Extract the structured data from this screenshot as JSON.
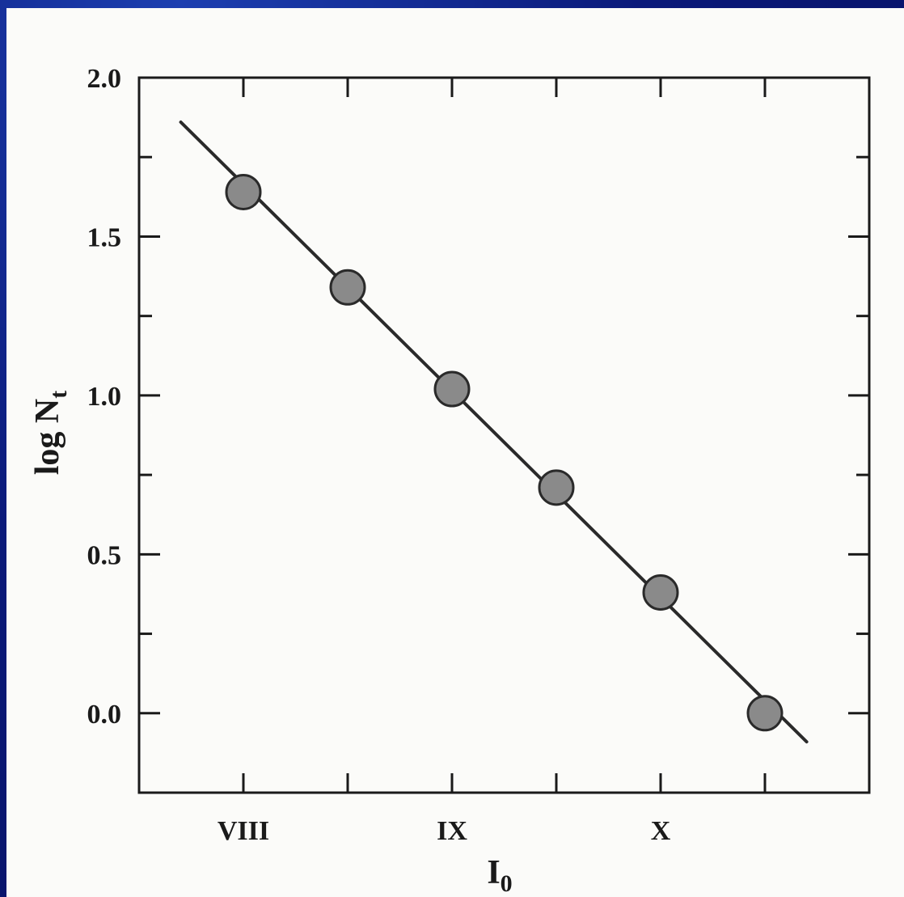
{
  "chart_data": {
    "type": "scatter",
    "title": "",
    "xlabel": "I",
    "xlabel_sub": "0",
    "ylabel": "log N",
    "ylabel_sub": "t",
    "x_ticks": [
      {
        "value": 8.0,
        "label": "VIII"
      },
      {
        "value": 8.5,
        "label": ""
      },
      {
        "value": 9.0,
        "label": "IX"
      },
      {
        "value": 9.5,
        "label": ""
      },
      {
        "value": 10.0,
        "label": "X"
      },
      {
        "value": 10.5,
        "label": ""
      }
    ],
    "y_ticks": [
      {
        "value": 0.0,
        "label": "0.0"
      },
      {
        "value": 0.25,
        "label": ""
      },
      {
        "value": 0.5,
        "label": "0.5"
      },
      {
        "value": 0.75,
        "label": ""
      },
      {
        "value": 1.0,
        "label": "1.0"
      },
      {
        "value": 1.25,
        "label": ""
      },
      {
        "value": 1.5,
        "label": "1.5"
      },
      {
        "value": 1.75,
        "label": ""
      },
      {
        "value": 2.0,
        "label": "2.0"
      }
    ],
    "xlim": [
      7.5,
      11.0
    ],
    "ylim": [
      -0.25,
      2.0
    ],
    "series": [
      {
        "x": [
          8.0,
          8.5,
          9.0,
          9.5,
          10.0,
          10.5
        ],
        "y": [
          1.64,
          1.34,
          1.02,
          0.71,
          0.38,
          0.0
        ]
      }
    ],
    "fit_line": {
      "x": [
        7.7,
        10.7
      ],
      "y": [
        1.86,
        -0.09
      ]
    },
    "grid": false,
    "colors": {
      "marker_fill": "#8a8a8a",
      "marker_stroke": "#2a2a2a",
      "line": "#2a2a2a",
      "axis": "#1a1a1a",
      "paper": "#fbfbf9",
      "slide_background": "#0b1a7a"
    }
  }
}
